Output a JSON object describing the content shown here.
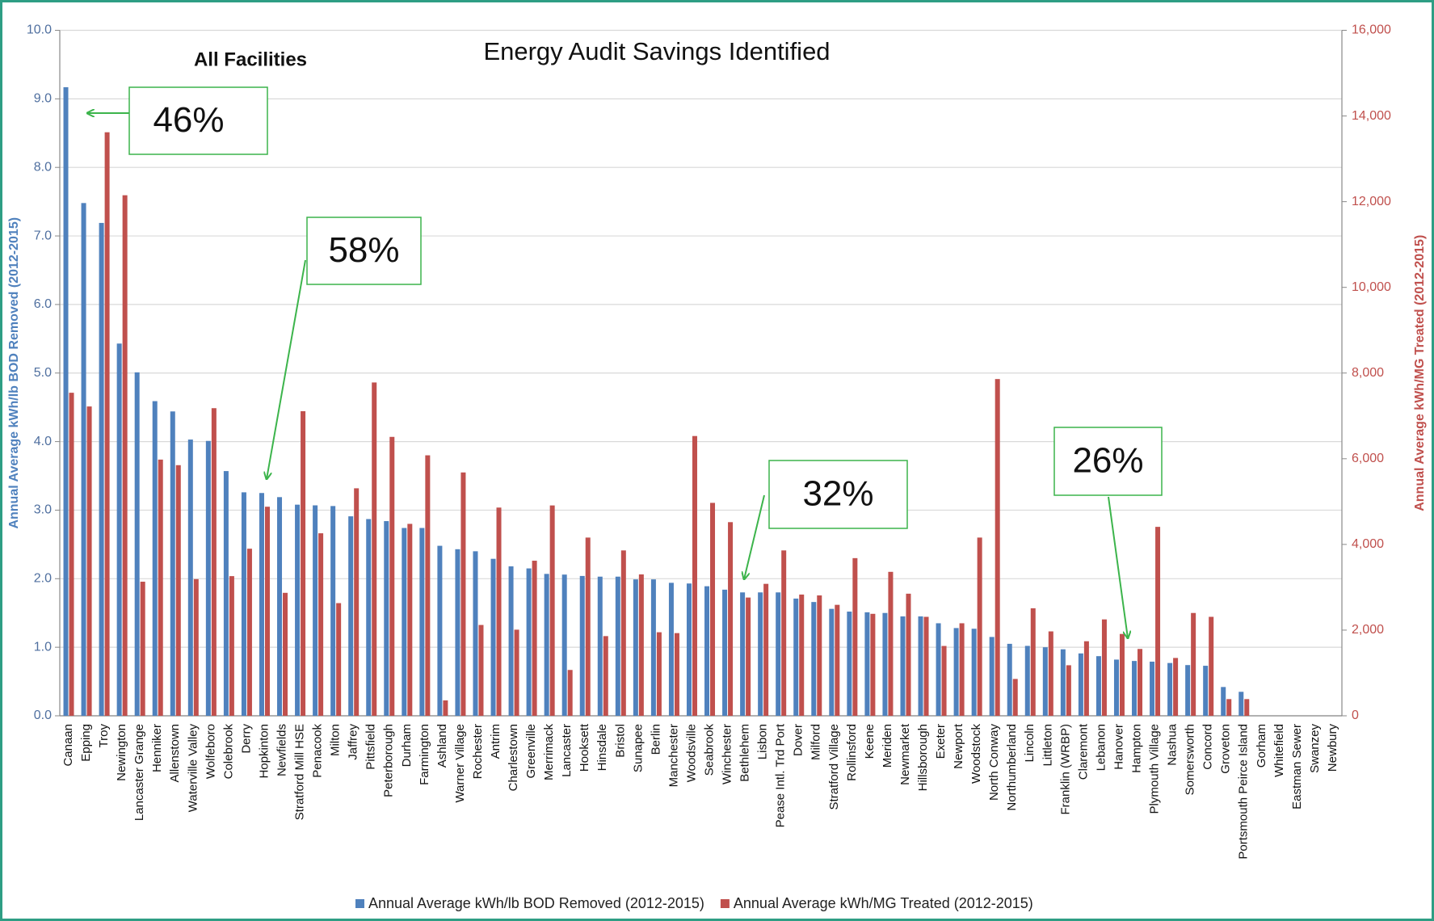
{
  "chart_data": {
    "type": "bar",
    "title": "Energy Audit Savings Identified",
    "subtitle": "All Facilities",
    "ylabel": "Annual Average kWh/lb BOD Removed (2012-2015)",
    "y2label": "Annual Average kWh/MG Treated (2012-2015)",
    "annotations": [
      "46%",
      "58%",
      "32%",
      "26%"
    ],
    "categories": [
      "Canaan",
      "Epping",
      "Troy",
      "Newington",
      "Lancaster Grange",
      "Henniker",
      "Allenstown",
      "Waterville Valley",
      "Wolfeboro",
      "Colebrook",
      "Derry",
      "Hopkinton",
      "Newfields",
      "Stratford Mill HSE",
      "Penacook",
      "Milton",
      "Jaffrey",
      "Pittsfield",
      "Peterborough",
      "Durham",
      "Farmington",
      "Ashland",
      "Warner Village",
      "Rochester",
      "Antrim",
      "Charlestown",
      "Greenville",
      "Merrimack",
      "Lancaster",
      "Hooksett",
      "Hinsdale",
      "Bristol",
      "Sunapee",
      "Berlin",
      "Manchester",
      "Woodsville",
      "Seabrook",
      "Winchester",
      "Bethlehem",
      "Lisbon",
      "Pease Intl. Trd Port",
      "Dover",
      "Milford",
      "Stratford Village",
      "Rollinsford",
      "Keene",
      "Meriden",
      "Newmarket",
      "Hillsborough",
      "Exeter",
      "Newport",
      "Woodstock",
      "North Conway",
      "Northumberland",
      "Lincoln",
      "Littleton",
      "Franklin (WRBP)",
      "Claremont",
      "Lebanon",
      "Hanover",
      "Hampton",
      "Plymouth Village",
      "Nashua",
      "Somersworth",
      "Concord",
      "Groveton",
      "Portsmouth Peirce Island",
      "Gorham",
      "Whitefield",
      "Eastman Sewer",
      "Swanzey",
      "Newbury"
    ],
    "series": [
      {
        "name": "Annual Average kWh/lb BOD Removed (2012-2015)",
        "color": "#4f81bd",
        "axis": "y",
        "values": [
          9.17,
          7.48,
          7.19,
          5.43,
          5.01,
          4.59,
          4.44,
          4.03,
          4.01,
          3.57,
          3.26,
          3.25,
          3.19,
          3.08,
          3.07,
          3.06,
          2.91,
          2.87,
          2.84,
          2.74,
          2.74,
          2.48,
          2.43,
          2.4,
          2.29,
          2.18,
          2.15,
          2.07,
          2.06,
          2.04,
          2.03,
          2.03,
          1.99,
          1.99,
          1.94,
          1.93,
          1.89,
          1.84,
          1.8,
          1.8,
          1.8,
          1.71,
          1.66,
          1.56,
          1.52,
          1.51,
          1.5,
          1.45,
          1.45,
          1.35,
          1.28,
          1.27,
          1.15,
          1.05,
          1.02,
          1.0,
          0.97,
          0.91,
          0.87,
          0.82,
          0.8,
          0.79,
          0.77,
          0.74,
          0.73,
          0.42,
          0.35,
          0,
          0,
          0,
          0,
          0
        ]
      },
      {
        "name": "Annual Average kWh/MG Treated (2012-2015)",
        "color": "#c0504d",
        "axis": "y2",
        "values": [
          7540,
          7220,
          13620,
          12150,
          3130,
          5980,
          5850,
          3190,
          7180,
          3260,
          3900,
          4880,
          2870,
          7110,
          4260,
          2630,
          5310,
          7780,
          6510,
          4480,
          6080,
          360,
          5680,
          2120,
          4860,
          2010,
          3620,
          4910,
          1070,
          4160,
          1860,
          3860,
          3300,
          1950,
          1930,
          6530,
          4970,
          4520,
          2760,
          3080,
          3860,
          2830,
          2810,
          2590,
          3680,
          2380,
          3360,
          2850,
          2310,
          1630,
          2160,
          4160,
          7860,
          860,
          2510,
          1970,
          1180,
          1740,
          2250,
          1910,
          1560,
          4410,
          1350,
          2400,
          2310,
          390,
          390,
          0,
          0,
          0,
          0,
          0
        ]
      }
    ],
    "ylim": [
      0,
      10
    ],
    "yticks": [
      {
        "value": 0,
        "label": "0.0"
      },
      {
        "value": 1,
        "label": "1.0"
      },
      {
        "value": 2,
        "label": "2.0"
      },
      {
        "value": 3,
        "label": "3.0"
      },
      {
        "value": 4,
        "label": "4.0"
      },
      {
        "value": 5,
        "label": "5.0"
      },
      {
        "value": 6,
        "label": "6.0"
      },
      {
        "value": 7,
        "label": "7.0"
      },
      {
        "value": 8,
        "label": "8.0"
      },
      {
        "value": 9,
        "label": "9.0"
      },
      {
        "value": 10,
        "label": "10.0"
      }
    ],
    "y2lim": [
      0,
      16000
    ],
    "y2ticks": [
      0,
      {
        "value": 2000,
        "label": "2,000"
      },
      {
        "value": 4000,
        "label": "4,000"
      },
      {
        "value": 6000,
        "label": "6,000"
      },
      {
        "value": 8000,
        "label": "8,000"
      },
      {
        "value": 10000,
        "label": "10,000"
      },
      {
        "value": 12000,
        "label": "12,000"
      },
      {
        "value": 14000,
        "label": "14,000"
      },
      {
        "value": 16000,
        "label": "16,000"
      }
    ],
    "grid": true,
    "legend": "bottom"
  }
}
